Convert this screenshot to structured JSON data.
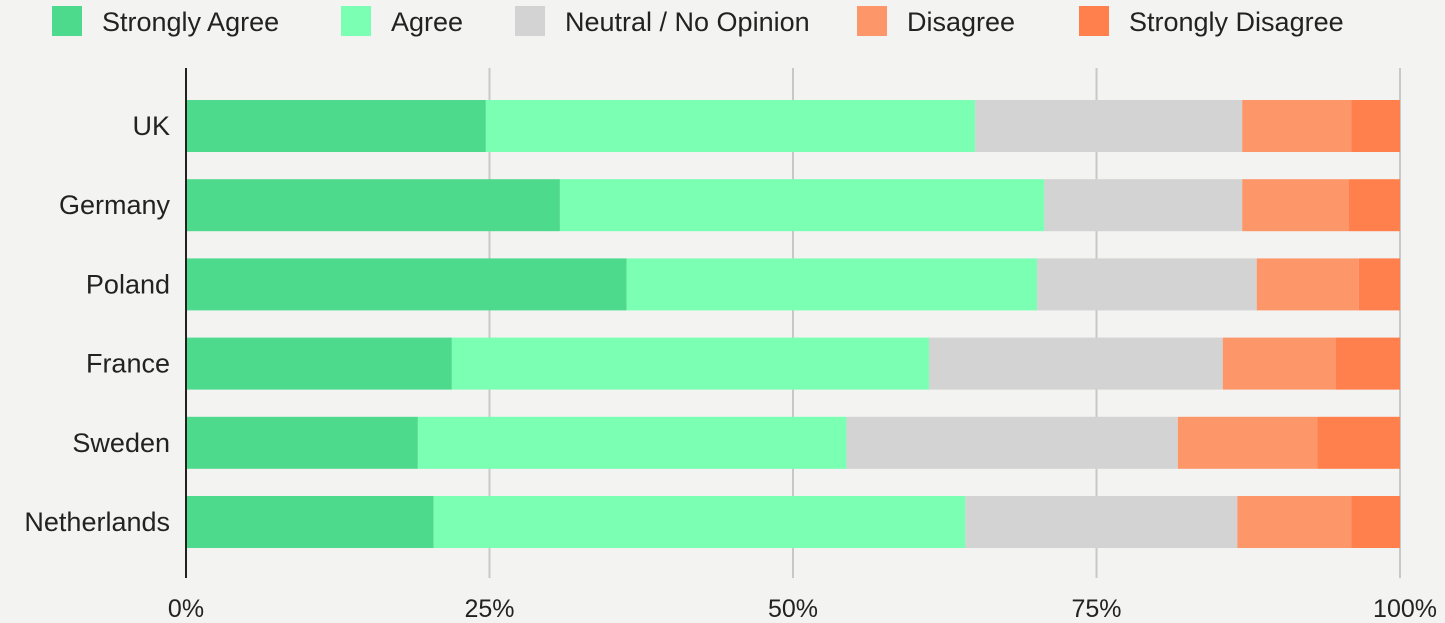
{
  "chart_data": {
    "type": "bar",
    "orientation": "horizontal",
    "stacked": true,
    "normalized": true,
    "categories": [
      "UK",
      "Germany",
      "Poland",
      "France",
      "Sweden",
      "Netherlands"
    ],
    "series": [
      {
        "name": "Strongly Agree",
        "color": "#4dda8d",
        "values": [
          24.7,
          30.8,
          36.3,
          21.9,
          19.1,
          20.4
        ]
      },
      {
        "name": "Agree",
        "color": "#7affb3",
        "values": [
          40.3,
          39.9,
          33.8,
          39.3,
          35.3,
          43.8
        ]
      },
      {
        "name": "Neutral / No Opinion",
        "color": "#d3d3d3",
        "values": [
          22.0,
          16.3,
          18.1,
          24.2,
          27.3,
          22.4
        ]
      },
      {
        "name": "Disagree",
        "color": "#fd976a",
        "values": [
          9.0,
          8.8,
          8.4,
          9.3,
          11.5,
          9.4
        ]
      },
      {
        "name": "Strongly Disagree",
        "color": "#ff7f4d",
        "values": [
          4.0,
          4.2,
          3.4,
          5.3,
          6.8,
          4.0
        ]
      }
    ],
    "xlim": [
      0,
      100
    ],
    "x_ticks": [
      "0%",
      "25%",
      "50%",
      "75%",
      "100%"
    ],
    "title": "",
    "xlabel": "",
    "ylabel": "",
    "grid": true,
    "legend_position": "top"
  }
}
